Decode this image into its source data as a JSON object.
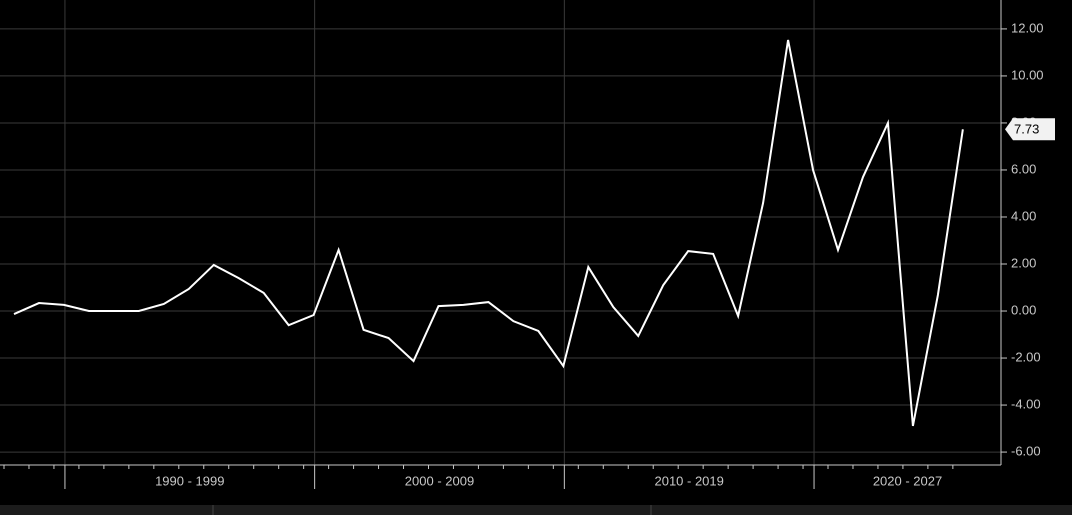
{
  "chart_data": {
    "type": "line",
    "categories": [
      null,
      null,
      null,
      null,
      null,
      null,
      null,
      null,
      null,
      null,
      null,
      null,
      null,
      null,
      null,
      null,
      null,
      null,
      null,
      null,
      null,
      null,
      null,
      null,
      null,
      null,
      null,
      null,
      null,
      null,
      null,
      null,
      null,
      null,
      null,
      null,
      null,
      null,
      null
    ],
    "values": [
      -0.13,
      0.34,
      0.26,
      0,
      0,
      0,
      0.3,
      0.94,
      1.96,
      1.4,
      0.77,
      -0.6,
      -0.17,
      2.6,
      -0.8,
      -1.15,
      -2.13,
      0.21,
      0.26,
      0.38,
      -0.43,
      -0.85,
      -2.34,
      1.87,
      0.17,
      -1.06,
      1.1,
      2.55,
      2.43,
      -0.21,
      4.6,
      11.53,
      6.0,
      2.6,
      5.7,
      8.0,
      -4.89,
      0.68,
      7.73
    ],
    "color": "#ffffff",
    "x_group_labels": [
      "1990 - 1999",
      "2000 - 2009",
      "2010 - 2019",
      "2020 - 2027"
    ],
    "ylim": [
      -6.55,
      13.23
    ],
    "yticks": [
      {
        "value": -6,
        "label": "-6.00"
      },
      {
        "value": -4,
        "label": "-4.00"
      },
      {
        "value": -2,
        "label": "-2.00"
      },
      {
        "value": 0,
        "label": "0.00"
      },
      {
        "value": 2,
        "label": "2.00"
      },
      {
        "value": 4,
        "label": "4.00"
      },
      {
        "value": 6,
        "label": "6.00"
      },
      {
        "value": 8,
        "label": "8.00"
      },
      {
        "value": 10,
        "label": "10.00"
      },
      {
        "value": 12,
        "label": "12.00"
      }
    ],
    "grid": true
  }
}
